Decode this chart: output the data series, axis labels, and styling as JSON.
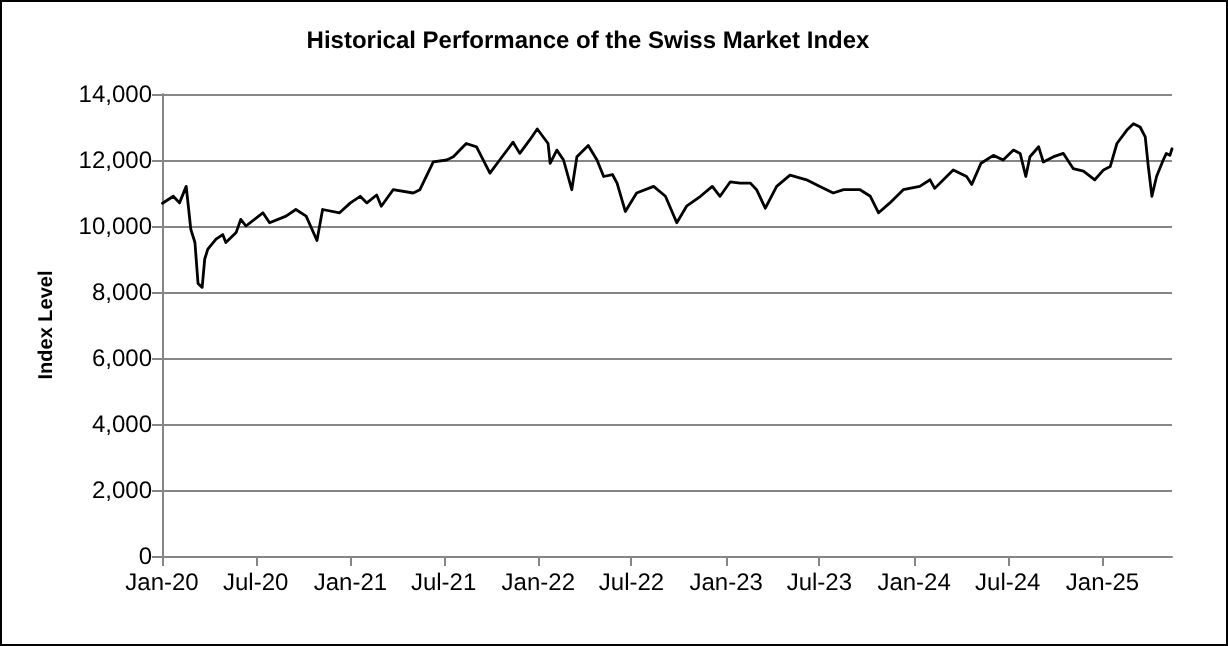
{
  "chart_data": {
    "type": "line",
    "title": "Historical Performance of the Swiss Market Index",
    "ylabel": "Index Level",
    "x": [
      "2020-01-02",
      "2020-01-23",
      "2020-02-04",
      "2020-02-17",
      "2020-02-26",
      "2020-03-05",
      "2020-03-11",
      "2020-03-19",
      "2020-03-24",
      "2020-03-30",
      "2020-04-15",
      "2020-04-28",
      "2020-05-04",
      "2020-05-24",
      "2020-06-02",
      "2020-06-12",
      "2020-07-15",
      "2020-07-28",
      "2020-08-29",
      "2020-09-17",
      "2020-10-07",
      "2020-10-28",
      "2020-11-08",
      "2020-12-11",
      "2021-01-01",
      "2021-01-20",
      "2021-02-02",
      "2021-02-21",
      "2021-03-02",
      "2021-03-25",
      "2021-05-03",
      "2021-05-16",
      "2021-06-11",
      "2021-07-07",
      "2021-07-20",
      "2021-08-14",
      "2021-09-03",
      "2021-09-29",
      "2021-10-18",
      "2021-11-13",
      "2021-11-26",
      "2021-12-15",
      "2021-12-30",
      "2022-01-20",
      "2022-01-24",
      "2022-02-06",
      "2022-02-19",
      "2022-03-07",
      "2022-03-17",
      "2022-04-08",
      "2022-04-25",
      "2022-05-08",
      "2022-05-25",
      "2022-06-03",
      "2022-06-19",
      "2022-07-11",
      "2022-08-13",
      "2022-09-05",
      "2022-09-27",
      "2022-10-16",
      "2022-11-12",
      "2022-12-05",
      "2022-12-20",
      "2023-01-09",
      "2023-01-28",
      "2023-02-17",
      "2023-03-01",
      "2023-03-18",
      "2023-04-09",
      "2023-05-05",
      "2023-06-06",
      "2023-07-02",
      "2023-07-28",
      "2023-08-17",
      "2023-09-18",
      "2023-10-08",
      "2023-10-24",
      "2023-11-15",
      "2023-12-11",
      "2024-01-12",
      "2024-02-01",
      "2024-02-10",
      "2024-03-17",
      "2024-04-12",
      "2024-04-22",
      "2024-05-10",
      "2024-06-03",
      "2024-06-22",
      "2024-07-12",
      "2024-07-25",
      "2024-08-05",
      "2024-08-13",
      "2024-08-30",
      "2024-09-08",
      "2024-09-28",
      "2024-10-17",
      "2024-11-05",
      "2024-11-25",
      "2024-12-17",
      "2025-01-03",
      "2025-01-16",
      "2025-01-29",
      "2025-02-17",
      "2025-03-02",
      "2025-03-15",
      "2025-03-25",
      "2025-03-31",
      "2025-04-07",
      "2025-04-16",
      "2025-04-29",
      "2025-05-05",
      "2025-05-12",
      "2025-05-16"
    ],
    "series": [
      {
        "color": "#000000",
        "values": [
          10690,
          10900,
          10700,
          11200,
          9900,
          9500,
          8260,
          8140,
          9000,
          9300,
          9600,
          9740,
          9500,
          9800,
          10200,
          10000,
          10400,
          10100,
          10300,
          10500,
          10300,
          9560,
          10500,
          10400,
          10700,
          10900,
          10700,
          10940,
          10600,
          11100,
          11000,
          11100,
          11940,
          12000,
          12100,
          12500,
          12400,
          11600,
          12000,
          12540,
          12200,
          12600,
          12940,
          12500,
          11900,
          12300,
          12000,
          11100,
          12100,
          12440,
          12000,
          11500,
          11560,
          11300,
          10440,
          11000,
          11200,
          10900,
          10100,
          10600,
          10900,
          11200,
          10900,
          11340,
          11300,
          11300,
          11100,
          10540,
          11200,
          11540,
          11400,
          11200,
          11000,
          11100,
          11100,
          10900,
          10400,
          10700,
          11100,
          11200,
          11400,
          11140,
          11700,
          11500,
          11260,
          11900,
          12140,
          12000,
          12300,
          12200,
          11500,
          12100,
          12400,
          11940,
          12100,
          12200,
          11740,
          11660,
          11400,
          11700,
          11800,
          12500,
          12900,
          13100,
          13000,
          12700,
          11800,
          10900,
          11500,
          12000,
          12200,
          12140,
          12340
        ]
      }
    ],
    "xlim": [
      "2020-01-01",
      "2025-05-16"
    ],
    "xticks": [
      {
        "value": "2020-01-01",
        "label": "Jan-20"
      },
      {
        "value": "2020-07-01",
        "label": "Jul-20"
      },
      {
        "value": "2021-01-01",
        "label": "Jan-21"
      },
      {
        "value": "2021-07-01",
        "label": "Jul-21"
      },
      {
        "value": "2022-01-01",
        "label": "Jan-22"
      },
      {
        "value": "2022-07-01",
        "label": "Jul-22"
      },
      {
        "value": "2023-01-01",
        "label": "Jan-23"
      },
      {
        "value": "2023-07-01",
        "label": "Jul-23"
      },
      {
        "value": "2024-01-01",
        "label": "Jan-24"
      },
      {
        "value": "2024-07-01",
        "label": "Jul-24"
      },
      {
        "value": "2025-01-01",
        "label": "Jan-25"
      }
    ],
    "ylim": [
      0,
      14000
    ],
    "yticks": [
      0,
      {
        "value": 2000,
        "label": "2,000"
      },
      {
        "value": 4000,
        "label": "4,000"
      },
      {
        "value": 6000,
        "label": "6,000"
      },
      {
        "value": 8000,
        "label": "8,000"
      },
      {
        "value": 10000,
        "label": "10,000"
      },
      {
        "value": 12000,
        "label": "12,000"
      },
      {
        "value": 14000,
        "label": "14,000"
      }
    ],
    "grid": "y"
  }
}
